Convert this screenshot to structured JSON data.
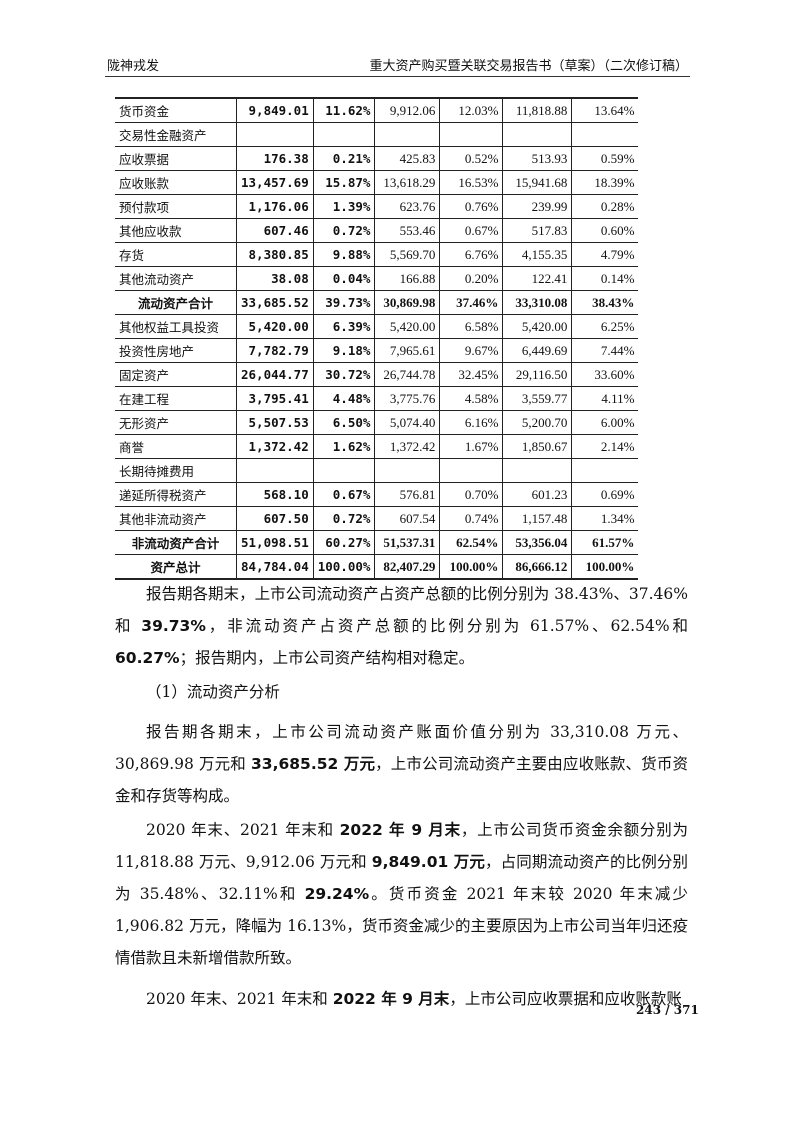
{
  "header": {
    "left": "陇神戎发",
    "right": "重大资产购买暨关联交易报告书（草案）（二次修订稿）"
  },
  "table": {
    "rows": [
      [
        "货币资金",
        "9,849.01",
        "11.62%",
        "9,912.06",
        "12.03%",
        "11,818.88",
        "13.64%"
      ],
      [
        "交易性金融资产",
        "",
        "",
        "",
        "",
        "",
        ""
      ],
      [
        "应收票据",
        "176.38",
        "0.21%",
        "425.83",
        "0.52%",
        "513.93",
        "0.59%"
      ],
      [
        "应收账款",
        "13,457.69",
        "15.87%",
        "13,618.29",
        "16.53%",
        "15,941.68",
        "18.39%"
      ],
      [
        "预付款项",
        "1,176.06",
        "1.39%",
        "623.76",
        "0.76%",
        "239.99",
        "0.28%"
      ],
      [
        "其他应收款",
        "607.46",
        "0.72%",
        "553.46",
        "0.67%",
        "517.83",
        "0.60%"
      ],
      [
        "存货",
        "8,380.85",
        "9.88%",
        "5,569.70",
        "6.76%",
        "4,155.35",
        "4.79%"
      ],
      [
        "其他流动资产",
        "38.08",
        "0.04%",
        "166.88",
        "0.20%",
        "122.41",
        "0.14%"
      ],
      [
        "流动资产合计",
        "33,685.52",
        "39.73%",
        "30,869.98",
        "37.46%",
        "33,310.08",
        "38.43%"
      ],
      [
        "其他权益工具投资",
        "5,420.00",
        "6.39%",
        "5,420.00",
        "6.58%",
        "5,420.00",
        "6.25%"
      ],
      [
        "投资性房地产",
        "7,782.79",
        "9.18%",
        "7,965.61",
        "9.67%",
        "6,449.69",
        "7.44%"
      ],
      [
        "固定资产",
        "26,044.77",
        "30.72%",
        "26,744.78",
        "32.45%",
        "29,116.50",
        "33.60%"
      ],
      [
        "在建工程",
        "3,795.41",
        "4.48%",
        "3,775.76",
        "4.58%",
        "3,559.77",
        "4.11%"
      ],
      [
        "无形资产",
        "5,507.53",
        "6.50%",
        "5,074.40",
        "6.16%",
        "5,200.70",
        "6.00%"
      ],
      [
        "商誉",
        "1,372.42",
        "1.62%",
        "1,372.42",
        "1.67%",
        "1,850.67",
        "2.14%"
      ],
      [
        "长期待摊费用",
        "",
        "",
        "",
        "",
        "",
        ""
      ],
      [
        "递延所得税资产",
        "568.10",
        "0.67%",
        "576.81",
        "0.70%",
        "601.23",
        "0.69%"
      ],
      [
        "其他非流动资产",
        "607.50",
        "0.72%",
        "607.54",
        "0.74%",
        "1,157.48",
        "1.34%"
      ],
      [
        "非流动资产合计",
        "51,098.51",
        "60.27%",
        "51,537.31",
        "62.54%",
        "53,356.04",
        "61.57%"
      ],
      [
        "资产总计",
        "84,784.04",
        "100.00%",
        "82,407.29",
        "100.00%",
        "86,666.12",
        "100.00%"
      ]
    ],
    "total_rows": [
      8,
      18,
      19
    ]
  },
  "p1": [
    "报告期各期末，上市公司流动资产占资产总额的比例分别为 38.43%、37.46%和 ",
    "39.73%",
    "，非流动资产占资产总额的比例分别为 61.57%、62.54%和 ",
    "60.27%",
    "；报告期内，上市公司资产结构相对稳定。"
  ],
  "p2": "（1）流动资产分析",
  "p3": [
    "报告期各期末，上市公司流动资产账面价值分别为 33,310.08 万元、30,869.98 万元和 ",
    "33,685.52 万元",
    "，上市公司流动资产主要由应收账款、货币资金和存货等构成。"
  ],
  "p4": [
    "2020 年末、2021 年末和 ",
    "2022 年 9 月末",
    "，上市公司货币资金余额分别为 11,818.88 万元、9,912.06 万元和 ",
    "9,849.01 万元",
    "，占同期流动资产的比例分别为 35.48%、32.11%和 ",
    "29.24%",
    "。货币资金 2021 年末较 2020 年末减少 1,906.82 万元，降幅为 16.13%，货币资金减少的主要原因为上市公司当年归还疫情借款且未新增借款所致。"
  ],
  "p5": [
    "2020 年末、2021 年末和 ",
    "2022 年 9 月末",
    "，上市公司应收票据和应收账款账"
  ],
  "page_number": "243 / 371"
}
